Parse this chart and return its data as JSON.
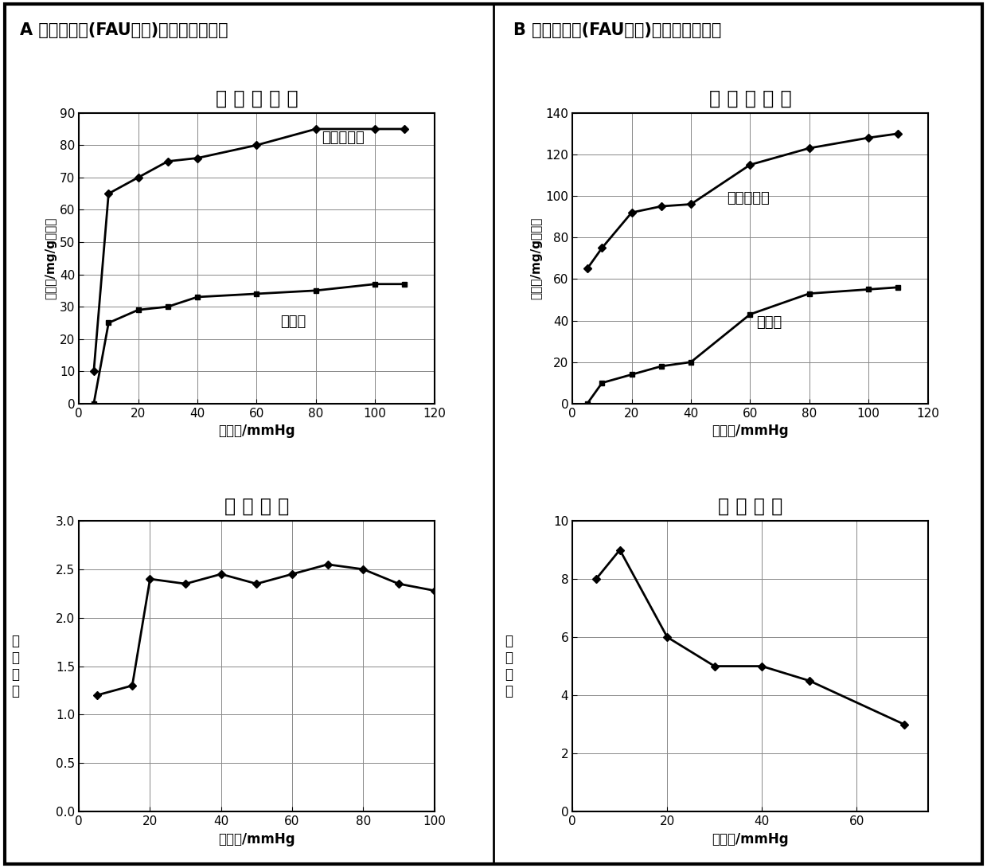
{
  "panel_A_title": "A 型八面汸石(FAU结构)极性分离吸附剂",
  "panel_B_title": "B 型八面汸石(FAU结构)极性分离吸附剂",
  "iso_title": "吸 附 等 温 线",
  "sep_title": "分 离 系 数",
  "xlabel": "蘵汽压/mmHg",
  "ylabel_iso": "吸附量/mg/g吸附剂",
  "ylabel_sep_lines": [
    "数",
    "系",
    "离",
    "分"
  ],
  "A_iso_x_methyl": [
    5,
    10,
    20,
    30,
    40,
    60,
    80,
    100,
    110
  ],
  "A_iso_y_methyl": [
    10,
    65,
    70,
    75,
    76,
    80,
    85,
    85,
    85
  ],
  "A_iso_x_nhexane": [
    5,
    10,
    20,
    30,
    40,
    60,
    80,
    100,
    110
  ],
  "A_iso_y_nhexane": [
    0,
    25,
    29,
    30,
    33,
    34,
    35,
    37,
    37
  ],
  "A_iso_label_methyl": "甲基环戊烷",
  "A_iso_label_nhexane": "正己烷",
  "A_iso_xlim": [
    0,
    120
  ],
  "A_iso_ylim": [
    0,
    90
  ],
  "A_iso_xticks": [
    0,
    20,
    40,
    60,
    80,
    100,
    120
  ],
  "A_iso_yticks": [
    0,
    10,
    20,
    30,
    40,
    50,
    60,
    70,
    80,
    90
  ],
  "A_sep_x": [
    5,
    15,
    20,
    30,
    40,
    50,
    60,
    70,
    80,
    90,
    100
  ],
  "A_sep_y": [
    1.2,
    1.3,
    2.4,
    2.35,
    2.45,
    2.35,
    2.45,
    2.55,
    2.5,
    2.35,
    2.28
  ],
  "A_sep_xlim": [
    0,
    100
  ],
  "A_sep_ylim": [
    0,
    3.0
  ],
  "A_sep_xticks": [
    0,
    20,
    40,
    60,
    80,
    100
  ],
  "A_sep_yticks": [
    0,
    0.5,
    1.0,
    1.5,
    2.0,
    2.5,
    3.0
  ],
  "B_iso_x_methyl": [
    5,
    10,
    20,
    30,
    40,
    60,
    80,
    100,
    110
  ],
  "B_iso_y_methyl": [
    65,
    75,
    92,
    95,
    96,
    115,
    123,
    128,
    130
  ],
  "B_iso_x_cyclohex": [
    5,
    10,
    20,
    30,
    40,
    60,
    80,
    100,
    110
  ],
  "B_iso_y_cyclohex": [
    0,
    10,
    14,
    18,
    20,
    43,
    53,
    55,
    56
  ],
  "B_iso_label_methyl": "甲基环戊烷",
  "B_iso_label_cyclohex": "环己烷",
  "B_iso_xlim": [
    0,
    120
  ],
  "B_iso_ylim": [
    0,
    140
  ],
  "B_iso_xticks": [
    0,
    20,
    40,
    60,
    80,
    100,
    120
  ],
  "B_iso_yticks": [
    0,
    20,
    40,
    60,
    80,
    100,
    120,
    140
  ],
  "B_sep_x": [
    5,
    10,
    20,
    30,
    40,
    50,
    70
  ],
  "B_sep_y": [
    8.0,
    9.0,
    6.0,
    5.0,
    5.0,
    4.5,
    3.0
  ],
  "B_sep_xlim": [
    0,
    75
  ],
  "B_sep_ylim": [
    0,
    10
  ],
  "B_sep_xticks": [
    0,
    20,
    40,
    60
  ],
  "B_sep_yticks": [
    0,
    2,
    4,
    6,
    8,
    10
  ],
  "bg_color": "#ffffff",
  "line_color": "#000000",
  "grid_color": "#888888",
  "linewidth": 2.0,
  "markersize": 5,
  "title_fontsize": 15,
  "subtitle_fontsize": 17,
  "label_fontsize": 12,
  "tick_fontsize": 11,
  "annot_fontsize": 13
}
